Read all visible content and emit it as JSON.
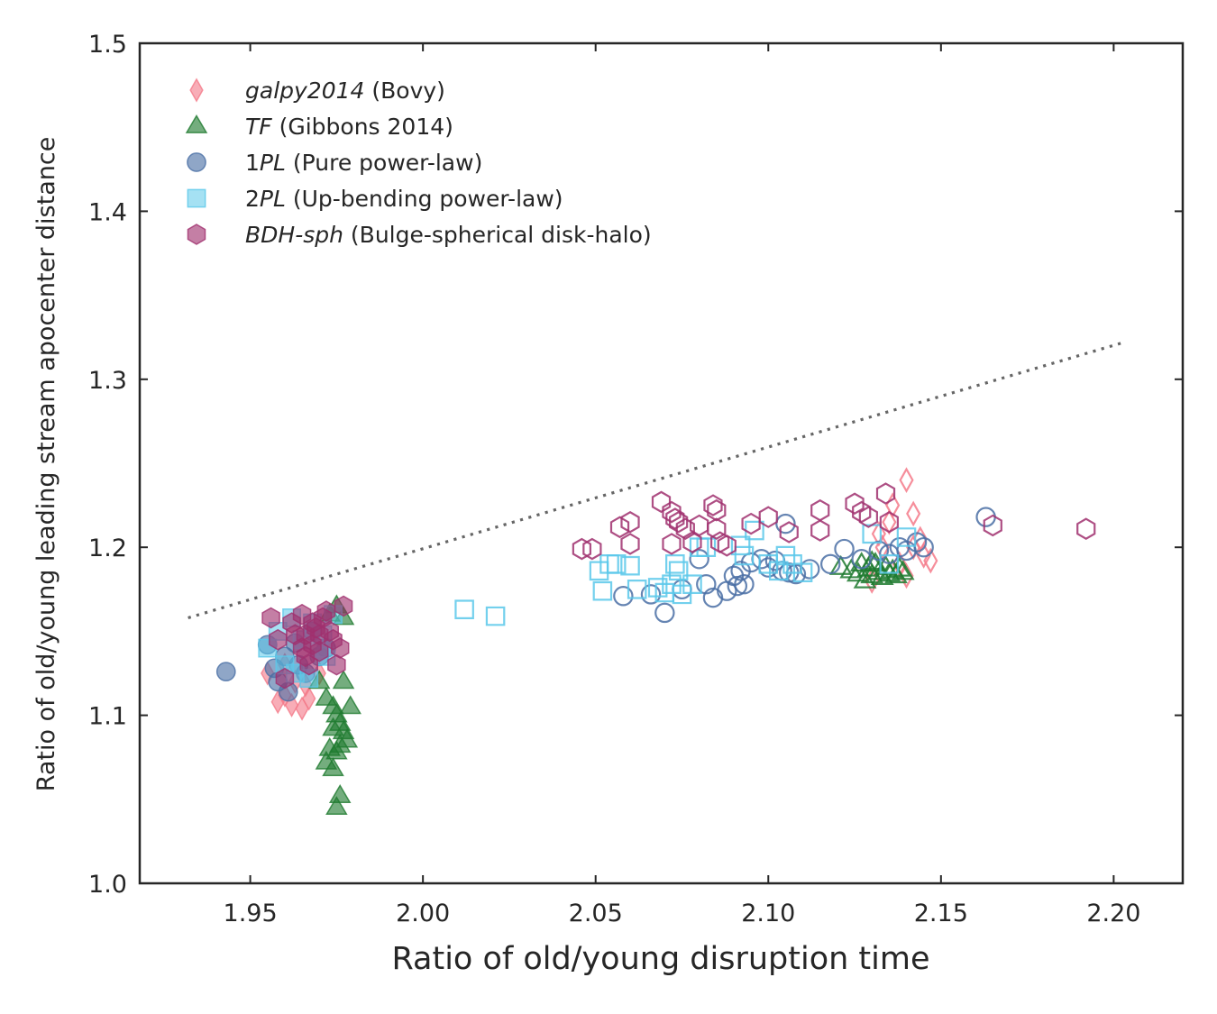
{
  "chart_data": {
    "type": "scatter",
    "xlabel": "Ratio of old/young disruption time",
    "ylabel": "Ratio of old/young leading stream apocenter distance",
    "xlim": [
      1.918,
      2.22
    ],
    "ylim": [
      1.0,
      1.5
    ],
    "xticks": [
      "1.95",
      "2.00",
      "2.05",
      "2.10",
      "2.15",
      "2.20"
    ],
    "xtick_values": [
      1.95,
      2.0,
      2.05,
      2.1,
      2.15,
      2.2
    ],
    "yticks": [
      "1.0",
      "1.1",
      "1.2",
      "1.3",
      "1.4",
      "1.5"
    ],
    "ytick_values": [
      1.0,
      1.1,
      1.2,
      1.3,
      1.4,
      1.5
    ],
    "grid": false,
    "legend_position": "top-left",
    "reference_line": {
      "style": "dotted",
      "color": "#666666",
      "x": [
        1.932,
        2.203
      ],
      "y": [
        1.158,
        1.322
      ]
    },
    "series": [
      {
        "name": "galpy2014",
        "name_style": "italic",
        "suffix": " (Bovy)",
        "marker": "diamond",
        "color": "#f47a8a",
        "filled": [
          [
            1.958,
            1.108
          ],
          [
            1.96,
            1.112
          ],
          [
            1.962,
            1.106
          ],
          [
            1.965,
            1.104
          ],
          [
            1.967,
            1.11
          ],
          [
            1.955,
            1.125
          ],
          [
            1.96,
            1.13
          ],
          [
            1.963,
            1.12
          ],
          [
            1.966,
            1.118
          ],
          [
            1.97,
            1.125
          ]
        ],
        "hollow": [
          [
            2.13,
            1.18
          ],
          [
            2.133,
            1.2
          ],
          [
            2.135,
            1.215
          ],
          [
            2.136,
            1.225
          ],
          [
            2.138,
            1.19
          ],
          [
            2.14,
            1.24
          ],
          [
            2.142,
            1.22
          ],
          [
            2.144,
            1.205
          ],
          [
            2.145,
            1.195
          ],
          [
            2.147,
            1.192
          ],
          [
            2.14,
            1.183
          ],
          [
            2.142,
            1.2
          ],
          [
            2.132,
            1.208
          ]
        ]
      },
      {
        "name": "TF",
        "name_style": "italic",
        "suffix": " (Gibbons 2014)",
        "marker": "triangle",
        "color": "#1f7a2f",
        "filled": [
          [
            1.97,
            1.12
          ],
          [
            1.972,
            1.11
          ],
          [
            1.974,
            1.105
          ],
          [
            1.975,
            1.1
          ],
          [
            1.976,
            1.095
          ],
          [
            1.977,
            1.09
          ],
          [
            1.978,
            1.085
          ],
          [
            1.973,
            1.08
          ],
          [
            1.975,
            1.078
          ],
          [
            1.972,
            1.072
          ],
          [
            1.974,
            1.068
          ],
          [
            1.976,
            1.052
          ],
          [
            1.975,
            1.045
          ],
          [
            1.977,
            1.12
          ],
          [
            1.979,
            1.105
          ],
          [
            1.973,
            1.16
          ],
          [
            1.975,
            1.165
          ],
          [
            1.977,
            1.158
          ],
          [
            1.974,
            1.092
          ],
          [
            1.976,
            1.082
          ]
        ],
        "hollow": [
          [
            2.121,
            1.188
          ],
          [
            2.124,
            1.186
          ],
          [
            2.126,
            1.184
          ],
          [
            2.127,
            1.19
          ],
          [
            2.128,
            1.18
          ],
          [
            2.129,
            1.187
          ],
          [
            2.13,
            1.183
          ],
          [
            2.131,
            1.19
          ],
          [
            2.132,
            1.185
          ],
          [
            2.133,
            1.182
          ],
          [
            2.134,
            1.188
          ],
          [
            2.135,
            1.184
          ],
          [
            2.136,
            1.186
          ],
          [
            2.137,
            1.183
          ],
          [
            2.138,
            1.187
          ],
          [
            2.139,
            1.185
          ],
          [
            2.13,
            1.191
          ]
        ]
      },
      {
        "name": "1PL",
        "name_style": "italic-suffix",
        "name_prefix": "1",
        "name_italic": "PL",
        "suffix": " (Pure power-law)",
        "marker": "circle",
        "color": "#4a6fa5",
        "filled": [
          [
            1.943,
            1.126
          ],
          [
            1.955,
            1.142
          ],
          [
            1.957,
            1.128
          ],
          [
            1.958,
            1.12
          ],
          [
            1.96,
            1.135
          ],
          [
            1.961,
            1.114
          ],
          [
            1.963,
            1.143
          ],
          [
            1.964,
            1.13
          ],
          [
            1.966,
            1.125
          ],
          [
            1.968,
            1.15
          ],
          [
            1.97,
            1.135
          ],
          [
            1.972,
            1.14
          ]
        ],
        "hollow": [
          [
            2.058,
            1.171
          ],
          [
            2.066,
            1.172
          ],
          [
            2.07,
            1.161
          ],
          [
            2.075,
            1.175
          ],
          [
            2.08,
            1.193
          ],
          [
            2.082,
            1.178
          ],
          [
            2.084,
            1.17
          ],
          [
            2.088,
            1.174
          ],
          [
            2.09,
            1.183
          ],
          [
            2.091,
            1.177
          ],
          [
            2.092,
            1.186
          ],
          [
            2.093,
            1.178
          ],
          [
            2.095,
            1.191
          ],
          [
            2.098,
            1.193
          ],
          [
            2.1,
            1.188
          ],
          [
            2.102,
            1.192
          ],
          [
            2.104,
            1.186
          ],
          [
            2.106,
            1.185
          ],
          [
            2.108,
            1.184
          ],
          [
            2.105,
            1.214
          ],
          [
            2.112,
            1.187
          ],
          [
            2.118,
            1.19
          ],
          [
            2.122,
            1.199
          ],
          [
            2.127,
            1.193
          ],
          [
            2.132,
            1.198
          ],
          [
            2.135,
            1.196
          ],
          [
            2.138,
            1.2
          ],
          [
            2.14,
            1.198
          ],
          [
            2.143,
            1.203
          ],
          [
            2.145,
            1.2
          ],
          [
            2.163,
            1.218
          ]
        ]
      },
      {
        "name": "2PL",
        "name_style": "italic-suffix",
        "name_prefix": "2",
        "name_italic": "PL",
        "suffix": " (Up-bending power-law)",
        "marker": "square",
        "color": "#5bc8ea",
        "filled": [
          [
            1.955,
            1.14
          ],
          [
            1.958,
            1.15
          ],
          [
            1.96,
            1.13
          ],
          [
            1.962,
            1.158
          ],
          [
            1.965,
            1.145
          ],
          [
            1.967,
            1.122
          ],
          [
            1.968,
            1.155
          ],
          [
            1.97,
            1.14
          ],
          [
            1.972,
            1.135
          ],
          [
            1.974,
            1.16
          ],
          [
            1.963,
            1.125
          ],
          [
            1.971,
            1.148
          ]
        ],
        "hollow": [
          [
            2.012,
            1.163
          ],
          [
            2.021,
            1.159
          ],
          [
            2.051,
            1.186
          ],
          [
            2.052,
            1.174
          ],
          [
            2.054,
            1.19
          ],
          [
            2.056,
            1.19
          ],
          [
            2.06,
            1.189
          ],
          [
            2.062,
            1.175
          ],
          [
            2.068,
            1.176
          ],
          [
            2.07,
            1.173
          ],
          [
            2.072,
            1.178
          ],
          [
            2.073,
            1.19
          ],
          [
            2.074,
            1.186
          ],
          [
            2.075,
            1.172
          ],
          [
            2.078,
            1.178
          ],
          [
            2.08,
            1.2
          ],
          [
            2.082,
            1.2
          ],
          [
            2.092,
            1.201
          ],
          [
            2.093,
            1.195
          ],
          [
            2.096,
            1.21
          ],
          [
            2.1,
            1.19
          ],
          [
            2.103,
            1.186
          ],
          [
            2.105,
            1.195
          ],
          [
            2.107,
            1.19
          ],
          [
            2.11,
            1.185
          ],
          [
            2.13,
            1.208
          ],
          [
            2.135,
            1.19
          ],
          [
            2.14,
            1.206
          ]
        ]
      },
      {
        "name": "BDH-sph",
        "name_style": "italic",
        "suffix": " (Bulge-spherical disk-halo)",
        "marker": "hexagon",
        "color": "#a0306e",
        "filled": [
          [
            1.956,
            1.158
          ],
          [
            1.958,
            1.145
          ],
          [
            1.96,
            1.122
          ],
          [
            1.962,
            1.155
          ],
          [
            1.963,
            1.148
          ],
          [
            1.965,
            1.14
          ],
          [
            1.966,
            1.135
          ],
          [
            1.967,
            1.13
          ],
          [
            1.968,
            1.142
          ],
          [
            1.969,
            1.152
          ],
          [
            1.97,
            1.148
          ],
          [
            1.971,
            1.158
          ],
          [
            1.972,
            1.162
          ],
          [
            1.973,
            1.15
          ],
          [
            1.974,
            1.145
          ],
          [
            1.975,
            1.13
          ],
          [
            1.976,
            1.14
          ],
          [
            1.977,
            1.165
          ],
          [
            1.965,
            1.16
          ],
          [
            1.97,
            1.138
          ],
          [
            1.966,
            1.148
          ],
          [
            1.968,
            1.155
          ]
        ],
        "hollow": [
          [
            2.046,
            1.199
          ],
          [
            2.049,
            1.199
          ],
          [
            2.057,
            1.212
          ],
          [
            2.06,
            1.215
          ],
          [
            2.06,
            1.202
          ],
          [
            2.069,
            1.227
          ],
          [
            2.072,
            1.202
          ],
          [
            2.072,
            1.221
          ],
          [
            2.073,
            1.217
          ],
          [
            2.074,
            1.215
          ],
          [
            2.076,
            1.211
          ],
          [
            2.078,
            1.203
          ],
          [
            2.08,
            1.213
          ],
          [
            2.084,
            1.225
          ],
          [
            2.085,
            1.222
          ],
          [
            2.085,
            1.211
          ],
          [
            2.086,
            1.203
          ],
          [
            2.088,
            1.201
          ],
          [
            2.095,
            1.214
          ],
          [
            2.1,
            1.218
          ],
          [
            2.106,
            1.209
          ],
          [
            2.115,
            1.222
          ],
          [
            2.115,
            1.21
          ],
          [
            2.125,
            1.226
          ],
          [
            2.127,
            1.221
          ],
          [
            2.129,
            1.218
          ],
          [
            2.134,
            1.232
          ],
          [
            2.135,
            1.215
          ],
          [
            2.165,
            1.213
          ],
          [
            2.192,
            1.211
          ]
        ]
      }
    ]
  }
}
